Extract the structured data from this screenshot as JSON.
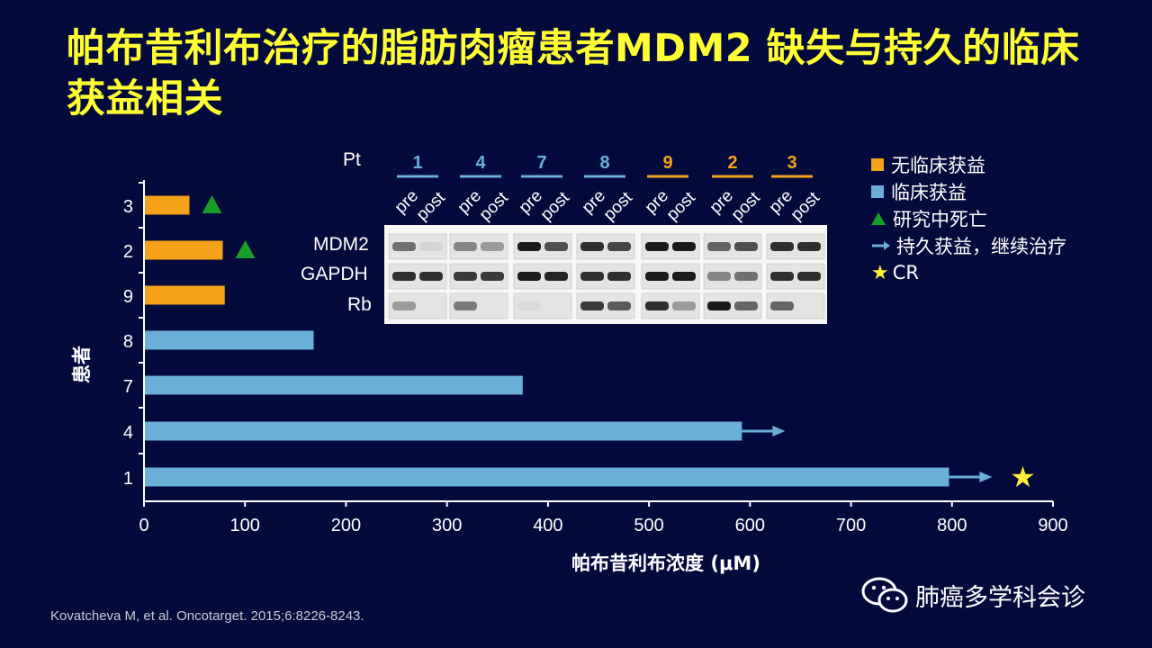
{
  "title": "帕布昔利布治疗的脂肪肉瘤患者MDM2 缺失与持久的临床获益相关",
  "colors": {
    "background": "#050a3c",
    "title": "#ffff33",
    "no_benefit": "#f5a21b",
    "benefit": "#6aafd6",
    "death_marker": "#1a9e2a",
    "star": "#ffef3a"
  },
  "chart_data": {
    "type": "bar",
    "orientation": "horizontal",
    "xlabel": "帕布昔利布浓度 (μM)",
    "ylabel": "患者",
    "xlim": [
      0,
      900
    ],
    "xticks": [
      "0",
      "100",
      "200",
      "300",
      "400",
      "500",
      "600",
      "700",
      "800",
      "900"
    ],
    "categories": [
      "3",
      "2",
      "9",
      "8",
      "7",
      "4",
      "1"
    ],
    "values": [
      45,
      78,
      80,
      168,
      375,
      592,
      797
    ],
    "groups": [
      "no_benefit",
      "no_benefit",
      "no_benefit",
      "benefit",
      "benefit",
      "benefit",
      "benefit"
    ],
    "died_on_study": [
      "3",
      "2"
    ],
    "durable_benefit": [
      "4",
      "1"
    ],
    "complete_response": [
      "1"
    ]
  },
  "blot": {
    "pt_label": "Pt",
    "patients": [
      {
        "id": "1",
        "group": "benefit"
      },
      {
        "id": "4",
        "group": "benefit"
      },
      {
        "id": "7",
        "group": "benefit"
      },
      {
        "id": "8",
        "group": "benefit"
      },
      {
        "id": "9",
        "group": "no_benefit"
      },
      {
        "id": "2",
        "group": "no_benefit"
      },
      {
        "id": "3",
        "group": "no_benefit"
      }
    ],
    "lane_labels": [
      "pre",
      "post"
    ],
    "rows": [
      "MDM2",
      "GAPDH",
      "Rb"
    ]
  },
  "legend": {
    "no_benefit": "无临床获益",
    "benefit": "临床获益",
    "death": "研究中死亡",
    "durable": "持久获益，继续治疗",
    "cr": "CR",
    "star_glyph": "★"
  },
  "source": "Kovatcheva M, et al. Oncotarget. 2015;6:8226-8243.",
  "watermark": "肺癌多学科会诊"
}
